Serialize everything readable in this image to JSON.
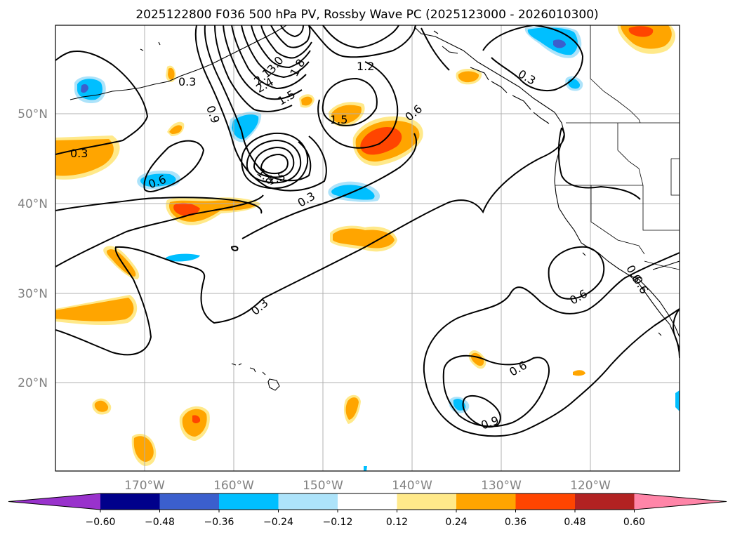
{
  "title": "2025122800 F036 500 hPa PV, Rossby Wave PC (2025123000 - 2026010300)",
  "lat_labels": [
    "50°N",
    "40°N",
    "30°N",
    "20°N"
  ],
  "lon_labels": [
    "170°W",
    "160°W",
    "150°W",
    "140°W",
    "130°W",
    "120°W"
  ],
  "colorbar": {
    "ticks": [
      "−0.60",
      "−0.48",
      "−0.36",
      "−0.24",
      "−0.12",
      "0.12",
      "0.24",
      "0.36",
      "0.48",
      "0.60"
    ],
    "colors": [
      "#9932CC",
      "#00008B",
      "#3B5FCD",
      "#00BFFF",
      "#ADE3FA",
      "#FFFFFF",
      "#FFE98A",
      "#FFA500",
      "#FF4500",
      "#B22222",
      "#FF85A8"
    ]
  },
  "contour_labels": [
    "0.3",
    "0.3",
    "0.9",
    "2.1",
    "2.4",
    "3.0",
    "1.8",
    "1.5",
    "1.2",
    "1.5",
    "0.6",
    "0.3",
    "1.8",
    "1.5",
    "0.3",
    "0.6",
    "0.3",
    "0.6",
    "0.6",
    "0.9",
    "0.6",
    "0.6"
  ],
  "colors": {
    "orange": "#FFA500",
    "yellow": "#FFE98A",
    "red": "#FF4500",
    "cyan": "#00BFFF",
    "lightblue": "#ADE3FA",
    "blue": "#3B5FCD"
  }
}
